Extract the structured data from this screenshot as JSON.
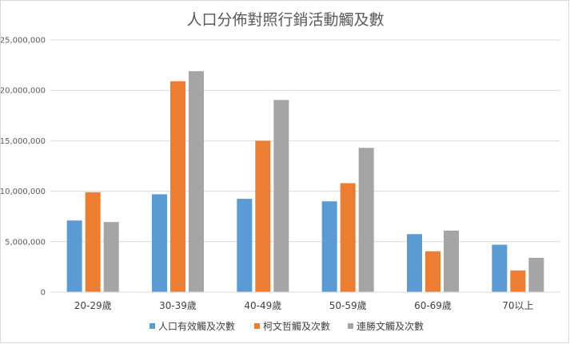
{
  "chart_data": {
    "type": "bar",
    "title": "人口分佈對照行銷活動觸及數",
    "categories": [
      "20-29歲",
      "30-39歲",
      "40-49歲",
      "50-59歲",
      "60-69歲",
      "70以上"
    ],
    "series": [
      {
        "name": "人口有效觸及次數",
        "color": "#5b9bd5",
        "values": [
          7100000,
          9700000,
          9250000,
          9000000,
          5750000,
          4700000
        ]
      },
      {
        "name": "柯文哲觸及次數",
        "color": "#ed7d31",
        "values": [
          9900000,
          20900000,
          15000000,
          10800000,
          4050000,
          2150000
        ]
      },
      {
        "name": "連勝文觸及次數",
        "color": "#a5a5a5",
        "values": [
          6950000,
          21900000,
          19050000,
          14300000,
          6100000,
          3400000
        ]
      }
    ],
    "ylim": [
      0,
      25000000
    ],
    "yticks": [
      "0",
      "5,000,000",
      "10,000,000",
      "15,000,000",
      "20,000,000",
      "25,000,000"
    ],
    "ytick_values": [
      0,
      5000000,
      10000000,
      15000000,
      20000000,
      25000000
    ],
    "grid": true,
    "legend_position": "bottom"
  }
}
